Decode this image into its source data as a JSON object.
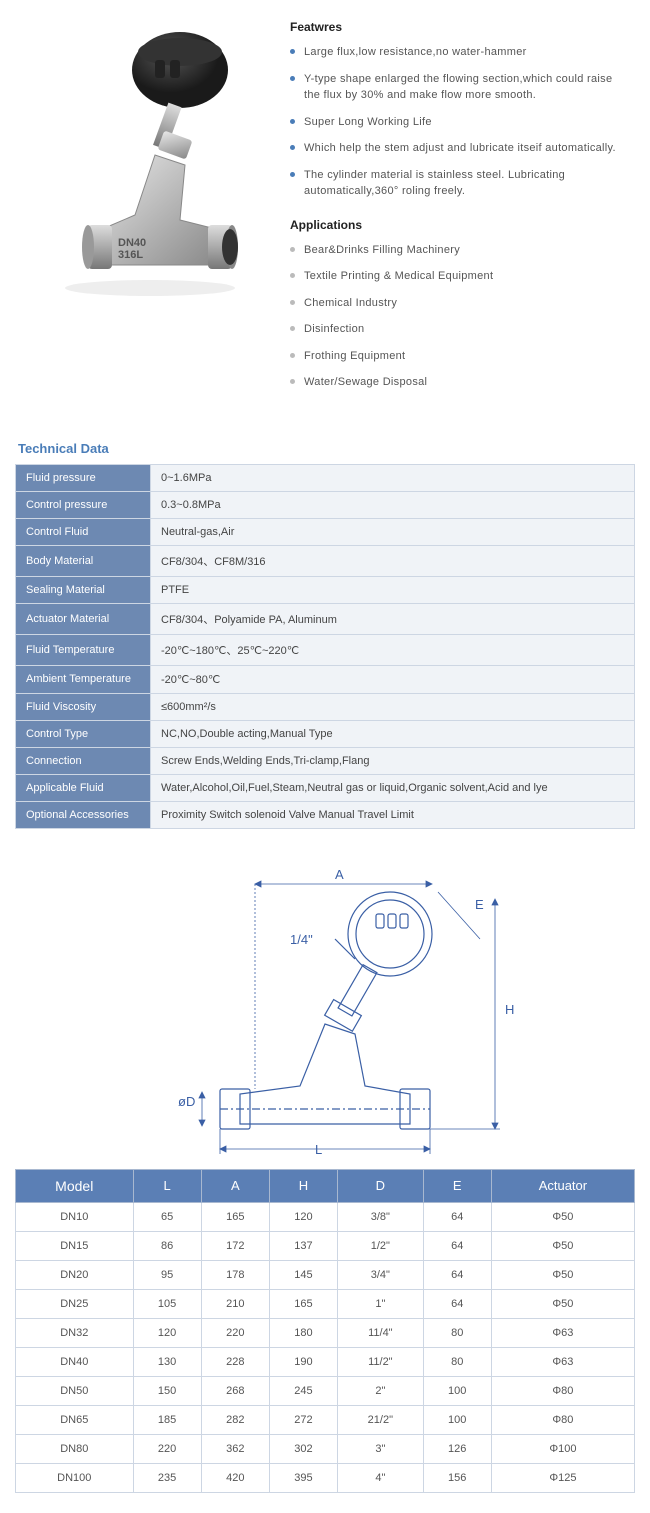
{
  "features": {
    "title": "Featwres",
    "items": [
      "Large flux,low resistance,no water-hammer",
      "Y-type shape enlarged the flowing section,which could raise the flux by 30% and make flow more smooth.",
      "Super Long Working Life",
      "Which help the stem adjust and lubricate itseif automatically.",
      "The cylinder material is stainless steel. Lubricating automatically,360° roling freely."
    ]
  },
  "applications": {
    "title": "Applications",
    "items": [
      "Bear&Drinks Filling Machinery",
      "Textile  Printing & Medical Equipment",
      "Chemical Industry",
      "Disinfection",
      "Frothing Equipment",
      "Water/Sewage Disposal"
    ]
  },
  "product_label": {
    "line1": "DN40",
    "line2": "316L"
  },
  "tech": {
    "title": "Technical Data",
    "rows": [
      {
        "label": "Fluid pressure",
        "value": "0~1.6MPa"
      },
      {
        "label": "Control pressure",
        "value": "0.3~0.8MPa"
      },
      {
        "label": "Control Fluid",
        "value": "Neutral-gas,Air"
      },
      {
        "label": "Body Material",
        "value": "CF8/304、CF8M/316"
      },
      {
        "label": "Sealing Material",
        "value": "PTFE"
      },
      {
        "label": "Actuator Material",
        "value": "CF8/304、Polyamide PA, Aluminum"
      },
      {
        "label": "Fluid Temperature",
        "value": "-20℃~180℃、25℃~220℃"
      },
      {
        "label": "Ambient Temperature",
        "value": "-20℃~80℃"
      },
      {
        "label": "Fluid Viscosity",
        "value": "≤600mm²/s"
      },
      {
        "label": "Control Type",
        "value": "NC,NO,Double acting,Manual Type"
      },
      {
        "label": "Connection",
        "value": "Screw Ends,Welding Ends,Tri-clamp,Flang"
      },
      {
        "label": "Applicable Fluid",
        "value": "Water,Alcohol,Oil,Fuel,Steam,Neutral gas or liquid,Organic solvent,Acid and lye"
      },
      {
        "label": "Optional Accessories",
        "value": "Proximity Switch solenoid Valve Manual Travel Limit"
      }
    ]
  },
  "diagram_labels": {
    "A": "A",
    "E": "E",
    "H": "H",
    "L": "L",
    "D": "øD",
    "port": "1/4\""
  },
  "dims": {
    "headers": [
      "Model",
      "L",
      "A",
      "H",
      "D",
      "E",
      "Actuator"
    ],
    "rows": [
      [
        "DN10",
        "65",
        "165",
        "120",
        "3/8\"",
        "64",
        "Φ50"
      ],
      [
        "DN15",
        "86",
        "172",
        "137",
        "1/2\"",
        "64",
        "Φ50"
      ],
      [
        "DN20",
        "95",
        "178",
        "145",
        "3/4\"",
        "64",
        "Φ50"
      ],
      [
        "DN25",
        "105",
        "210",
        "165",
        "1\"",
        "64",
        "Φ50"
      ],
      [
        "DN32",
        "120",
        "220",
        "180",
        "11/4\"",
        "80",
        "Φ63"
      ],
      [
        "DN40",
        "130",
        "228",
        "190",
        "11/2\"",
        "80",
        "Φ63"
      ],
      [
        "DN50",
        "150",
        "268",
        "245",
        "2\"",
        "100",
        "Φ80"
      ],
      [
        "DN65",
        "185",
        "282",
        "272",
        "21/2\"",
        "100",
        "Φ80"
      ],
      [
        "DN80",
        "220",
        "362",
        "302",
        "3\"",
        "126",
        "Φ100"
      ],
      [
        "DN100",
        "235",
        "420",
        "395",
        "4\"",
        "156",
        "Φ125"
      ]
    ]
  },
  "colors": {
    "accent_blue": "#4a7db8",
    "table_header_blue": "#5b7fb5",
    "tech_label_blue": "#6d89b2",
    "tech_value_bg": "#f0f3f7",
    "border": "#cdd6e3"
  }
}
